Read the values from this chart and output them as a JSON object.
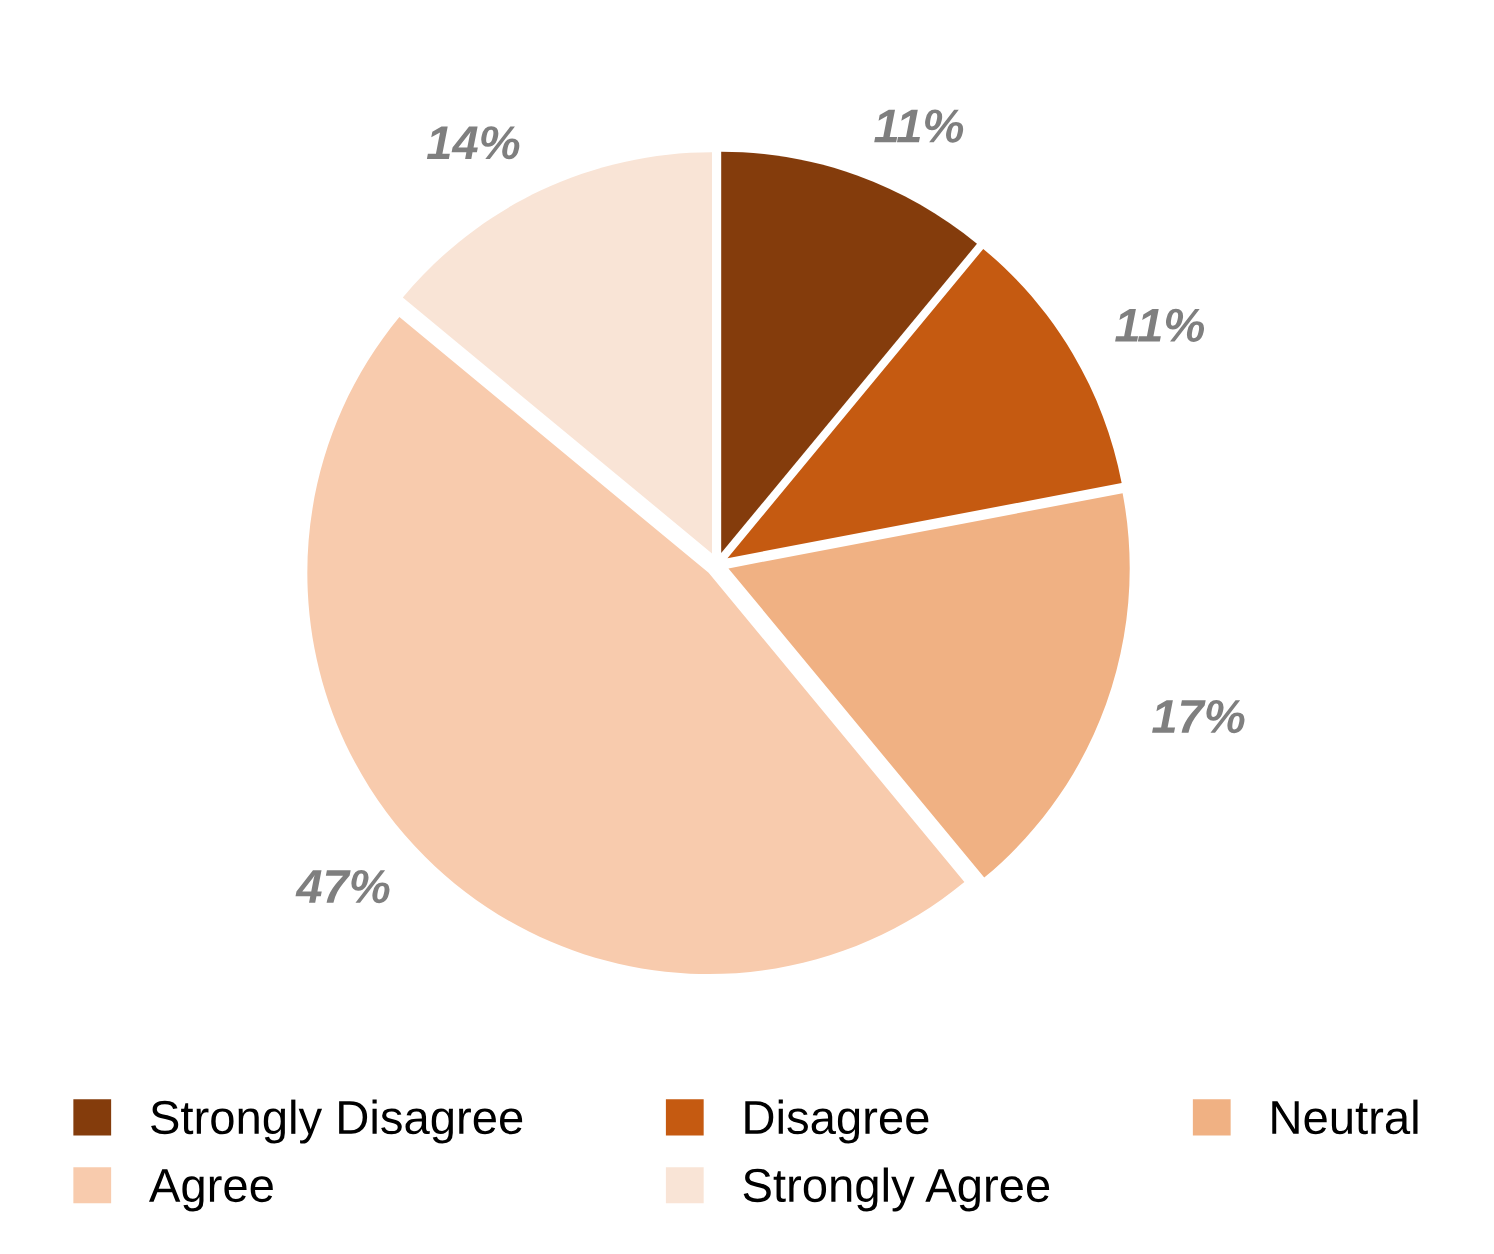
{
  "chart_data": {
    "type": "pie",
    "categories": [
      "Strongly Disagree",
      "Disagree",
      "Neutral",
      "Agree",
      "Strongly Agree"
    ],
    "values": [
      11,
      11,
      17,
      47,
      14
    ],
    "colors": [
      "#843c0c",
      "#c55a11",
      "#f0b183",
      "#f8cbad",
      "#f9e4d6"
    ],
    "value_labels": [
      "11%",
      "11%",
      "17%",
      "47%",
      "14%"
    ],
    "legend": "bottom"
  }
}
